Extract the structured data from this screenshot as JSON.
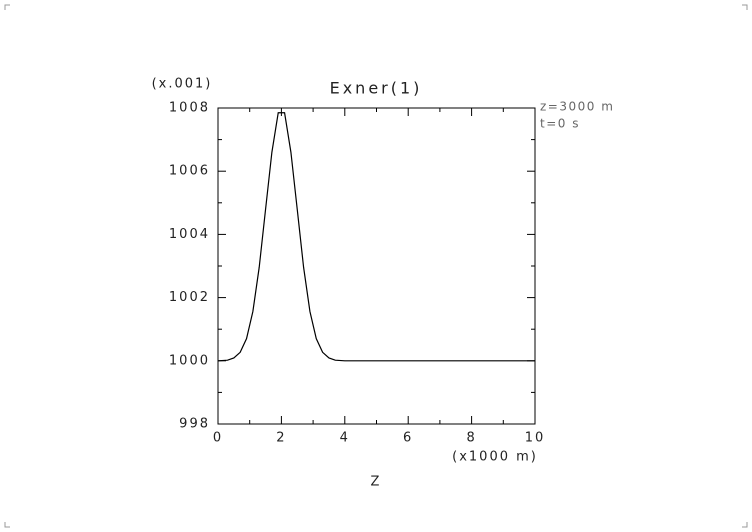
{
  "chart_data": {
    "type": "line",
    "title": "Exner(1)",
    "y_scale_label": "(x.001)",
    "annotations": [
      "z=3000 m",
      "t=0 s"
    ],
    "x_unit_label": "(x1000 m)",
    "xlabel": "Z",
    "x": [
      0,
      0.3,
      0.5,
      0.7,
      0.9,
      1.1,
      1.3,
      1.5,
      1.7,
      1.9,
      2.1,
      2.3,
      2.5,
      2.7,
      2.9,
      3.1,
      3.3,
      3.5,
      3.7,
      4,
      10
    ],
    "series": [
      {
        "name": "Exner(1)",
        "color": "#000000",
        "values": [
          1000.0,
          1000.02,
          1000.09,
          1000.27,
          1000.7,
          1001.56,
          1002.96,
          1004.79,
          1006.6,
          1007.85,
          1007.85,
          1006.6,
          1004.79,
          1002.96,
          1001.56,
          1000.7,
          1000.27,
          1000.09,
          1000.02,
          1000.0,
          1000.0
        ]
      }
    ],
    "xlim": [
      0,
      10
    ],
    "xticks": [
      0,
      2,
      4,
      6,
      8,
      10
    ],
    "xminorticks": [
      1,
      3,
      5,
      7,
      9
    ],
    "ylim": [
      998,
      1008
    ],
    "yticks": [
      998,
      1000,
      1002,
      1004,
      1006,
      1008
    ],
    "yminorticks": [
      999,
      1001,
      1003,
      1005,
      1007
    ]
  }
}
